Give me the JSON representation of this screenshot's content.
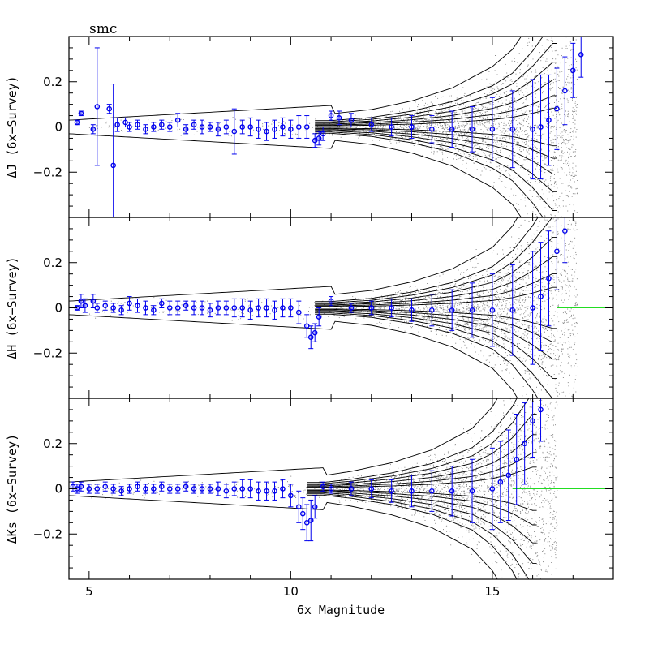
{
  "figure": {
    "title": "smc",
    "xlabel": "6x Magnitude"
  },
  "colors": {
    "points": "#0000ee",
    "zero_line": "#22dd22",
    "scatter": "#8a8a8a",
    "contour": "#000000"
  },
  "chart_data": [
    {
      "type": "scatter",
      "ylabel": "ΔJ (6x−Survey)",
      "xlim": [
        4.5,
        18.0
      ],
      "ylim": [
        -0.4,
        0.4
      ],
      "xticks": [
        "5",
        "10",
        "15"
      ],
      "yticks": [
        "0.2",
        "0",
        "−0.2"
      ],
      "zero_line": 0,
      "band": {
        "x": [
          11,
          12,
          13,
          14,
          15,
          15.5,
          16,
          16.5
        ],
        "half_width": [
          0.02,
          0.03,
          0.05,
          0.08,
          0.13,
          0.17,
          0.24,
          0.33
        ]
      },
      "series": [
        {
          "x": [
            4.7,
            4.8,
            5.1,
            5.2,
            5.5,
            5.6,
            5.7,
            5.9,
            6.0,
            6.2,
            6.4,
            6.6,
            6.8,
            7.0,
            7.2,
            7.4,
            7.6,
            7.8,
            8.0,
            8.2,
            8.4,
            8.6,
            8.8,
            9.0,
            9.2,
            9.4,
            9.6,
            9.8,
            10.0,
            10.2,
            10.4,
            10.6,
            10.7,
            10.8,
            11.0,
            11.2,
            11.5,
            12.0,
            12.5,
            13.0,
            13.5,
            14.0,
            14.5,
            15.0,
            15.5,
            16.0,
            16.2,
            16.4,
            16.6,
            16.8,
            17.0,
            17.2
          ],
          "y": [
            0.02,
            0.06,
            -0.01,
            0.09,
            0.08,
            -0.17,
            0.01,
            0.02,
            0.0,
            0.01,
            -0.01,
            0.0,
            0.01,
            0.0,
            0.03,
            -0.01,
            0.01,
            0.0,
            0.0,
            -0.01,
            0.0,
            -0.02,
            0.0,
            0.0,
            -0.01,
            -0.02,
            -0.01,
            0.0,
            -0.01,
            0.0,
            0.0,
            -0.06,
            -0.05,
            -0.03,
            0.05,
            0.04,
            0.03,
            0.01,
            0.0,
            0.0,
            -0.01,
            -0.01,
            -0.01,
            -0.01,
            -0.01,
            -0.01,
            0.0,
            0.03,
            0.08,
            0.16,
            0.25,
            0.32
          ],
          "err": [
            0.01,
            0.01,
            0.02,
            0.26,
            0.02,
            0.36,
            0.03,
            0.02,
            0.02,
            0.02,
            0.02,
            0.02,
            0.02,
            0.02,
            0.03,
            0.02,
            0.02,
            0.03,
            0.02,
            0.03,
            0.03,
            0.1,
            0.03,
            0.04,
            0.04,
            0.04,
            0.04,
            0.04,
            0.04,
            0.05,
            0.05,
            0.03,
            0.03,
            0.03,
            0.02,
            0.03,
            0.03,
            0.03,
            0.04,
            0.05,
            0.06,
            0.08,
            0.1,
            0.14,
            0.17,
            0.22,
            0.23,
            0.2,
            0.18,
            0.15,
            0.12,
            0.1
          ]
        }
      ]
    },
    {
      "type": "scatter",
      "ylabel": "ΔH (6x−Survey)",
      "xlim": [
        4.5,
        18.0
      ],
      "ylim": [
        -0.4,
        0.4
      ],
      "xticks": [
        "5",
        "10",
        "15"
      ],
      "yticks": [
        "0.2",
        "0",
        "−0.2"
      ],
      "zero_line": 0,
      "band": {
        "x": [
          11,
          12,
          13,
          14,
          15,
          15.5,
          16,
          16.5
        ],
        "half_width": [
          0.02,
          0.03,
          0.05,
          0.08,
          0.13,
          0.18,
          0.26,
          0.36
        ]
      },
      "series": [
        {
          "x": [
            4.7,
            4.8,
            4.9,
            5.1,
            5.2,
            5.4,
            5.6,
            5.8,
            6.0,
            6.2,
            6.4,
            6.6,
            6.8,
            7.0,
            7.2,
            7.4,
            7.6,
            7.8,
            8.0,
            8.2,
            8.4,
            8.6,
            8.8,
            9.0,
            9.2,
            9.4,
            9.6,
            9.8,
            10.0,
            10.2,
            10.4,
            10.5,
            10.6,
            10.7,
            11.0,
            11.5,
            12.0,
            12.5,
            13.0,
            13.5,
            14.0,
            14.5,
            15.0,
            15.5,
            16.0,
            16.2,
            16.4,
            16.6,
            16.8
          ],
          "y": [
            0.0,
            0.03,
            0.01,
            0.03,
            0.0,
            0.01,
            0.0,
            -0.01,
            0.02,
            0.01,
            0.0,
            -0.01,
            0.02,
            0.0,
            0.0,
            0.01,
            0.0,
            0.0,
            -0.01,
            0.0,
            0.0,
            0.0,
            0.0,
            -0.01,
            0.0,
            0.0,
            -0.01,
            0.0,
            0.0,
            -0.02,
            -0.08,
            -0.13,
            -0.11,
            -0.04,
            0.03,
            0.0,
            0.0,
            0.0,
            -0.01,
            -0.01,
            -0.01,
            -0.01,
            -0.01,
            -0.01,
            0.0,
            0.05,
            0.13,
            0.25,
            0.34
          ],
          "err": [
            0.01,
            0.03,
            0.03,
            0.03,
            0.02,
            0.02,
            0.02,
            0.02,
            0.03,
            0.03,
            0.03,
            0.02,
            0.02,
            0.03,
            0.03,
            0.02,
            0.03,
            0.03,
            0.03,
            0.03,
            0.03,
            0.04,
            0.04,
            0.04,
            0.04,
            0.04,
            0.04,
            0.04,
            0.04,
            0.05,
            0.05,
            0.05,
            0.04,
            0.04,
            0.02,
            0.02,
            0.03,
            0.04,
            0.05,
            0.07,
            0.09,
            0.12,
            0.16,
            0.2,
            0.25,
            0.24,
            0.21,
            0.17,
            0.14
          ]
        }
      ]
    },
    {
      "type": "scatter",
      "ylabel": "ΔKs (6x−Survey)",
      "xlim": [
        4.5,
        18.0
      ],
      "ylim": [
        -0.4,
        0.4
      ],
      "xticks": [
        "5",
        "10",
        "15"
      ],
      "yticks": [
        "0.2",
        "0",
        "−0.2"
      ],
      "zero_line": 0,
      "band": {
        "x": [
          10.8,
          11.5,
          12.5,
          13.5,
          14.5,
          15.0,
          15.5,
          16.0
        ],
        "half_width": [
          0.02,
          0.03,
          0.05,
          0.08,
          0.13,
          0.18,
          0.26,
          0.38
        ]
      },
      "series": [
        {
          "x": [
            4.6,
            4.7,
            4.8,
            5.0,
            5.2,
            5.4,
            5.6,
            5.8,
            6.0,
            6.2,
            6.4,
            6.6,
            6.8,
            7.0,
            7.2,
            7.4,
            7.6,
            7.8,
            8.0,
            8.2,
            8.4,
            8.6,
            8.8,
            9.0,
            9.2,
            9.4,
            9.6,
            9.8,
            10.0,
            10.2,
            10.3,
            10.4,
            10.5,
            10.6,
            10.8,
            11.0,
            11.5,
            12.0,
            12.5,
            13.0,
            13.5,
            14.0,
            14.5,
            15.0,
            15.2,
            15.4,
            15.6,
            15.8,
            16.0,
            16.2
          ],
          "y": [
            0.01,
            0.0,
            0.01,
            0.0,
            0.0,
            0.01,
            0.0,
            -0.01,
            0.0,
            0.01,
            0.0,
            0.0,
            0.01,
            0.0,
            0.0,
            0.01,
            0.0,
            0.0,
            0.0,
            0.0,
            -0.01,
            0.0,
            0.0,
            0.0,
            -0.01,
            -0.01,
            -0.01,
            0.0,
            -0.03,
            -0.08,
            -0.11,
            -0.15,
            -0.14,
            -0.08,
            0.01,
            0.0,
            0.0,
            0.0,
            -0.01,
            -0.01,
            -0.01,
            -0.01,
            -0.01,
            0.0,
            0.03,
            0.06,
            0.13,
            0.2,
            0.3,
            0.35
          ],
          "err": [
            0.02,
            0.02,
            0.02,
            0.02,
            0.02,
            0.02,
            0.02,
            0.02,
            0.02,
            0.02,
            0.02,
            0.02,
            0.02,
            0.02,
            0.02,
            0.02,
            0.02,
            0.02,
            0.02,
            0.03,
            0.03,
            0.03,
            0.04,
            0.04,
            0.04,
            0.04,
            0.04,
            0.04,
            0.05,
            0.07,
            0.07,
            0.08,
            0.09,
            0.05,
            0.02,
            0.02,
            0.03,
            0.04,
            0.05,
            0.07,
            0.09,
            0.11,
            0.14,
            0.18,
            0.18,
            0.2,
            0.2,
            0.18,
            0.16,
            0.14
          ]
        }
      ]
    }
  ]
}
